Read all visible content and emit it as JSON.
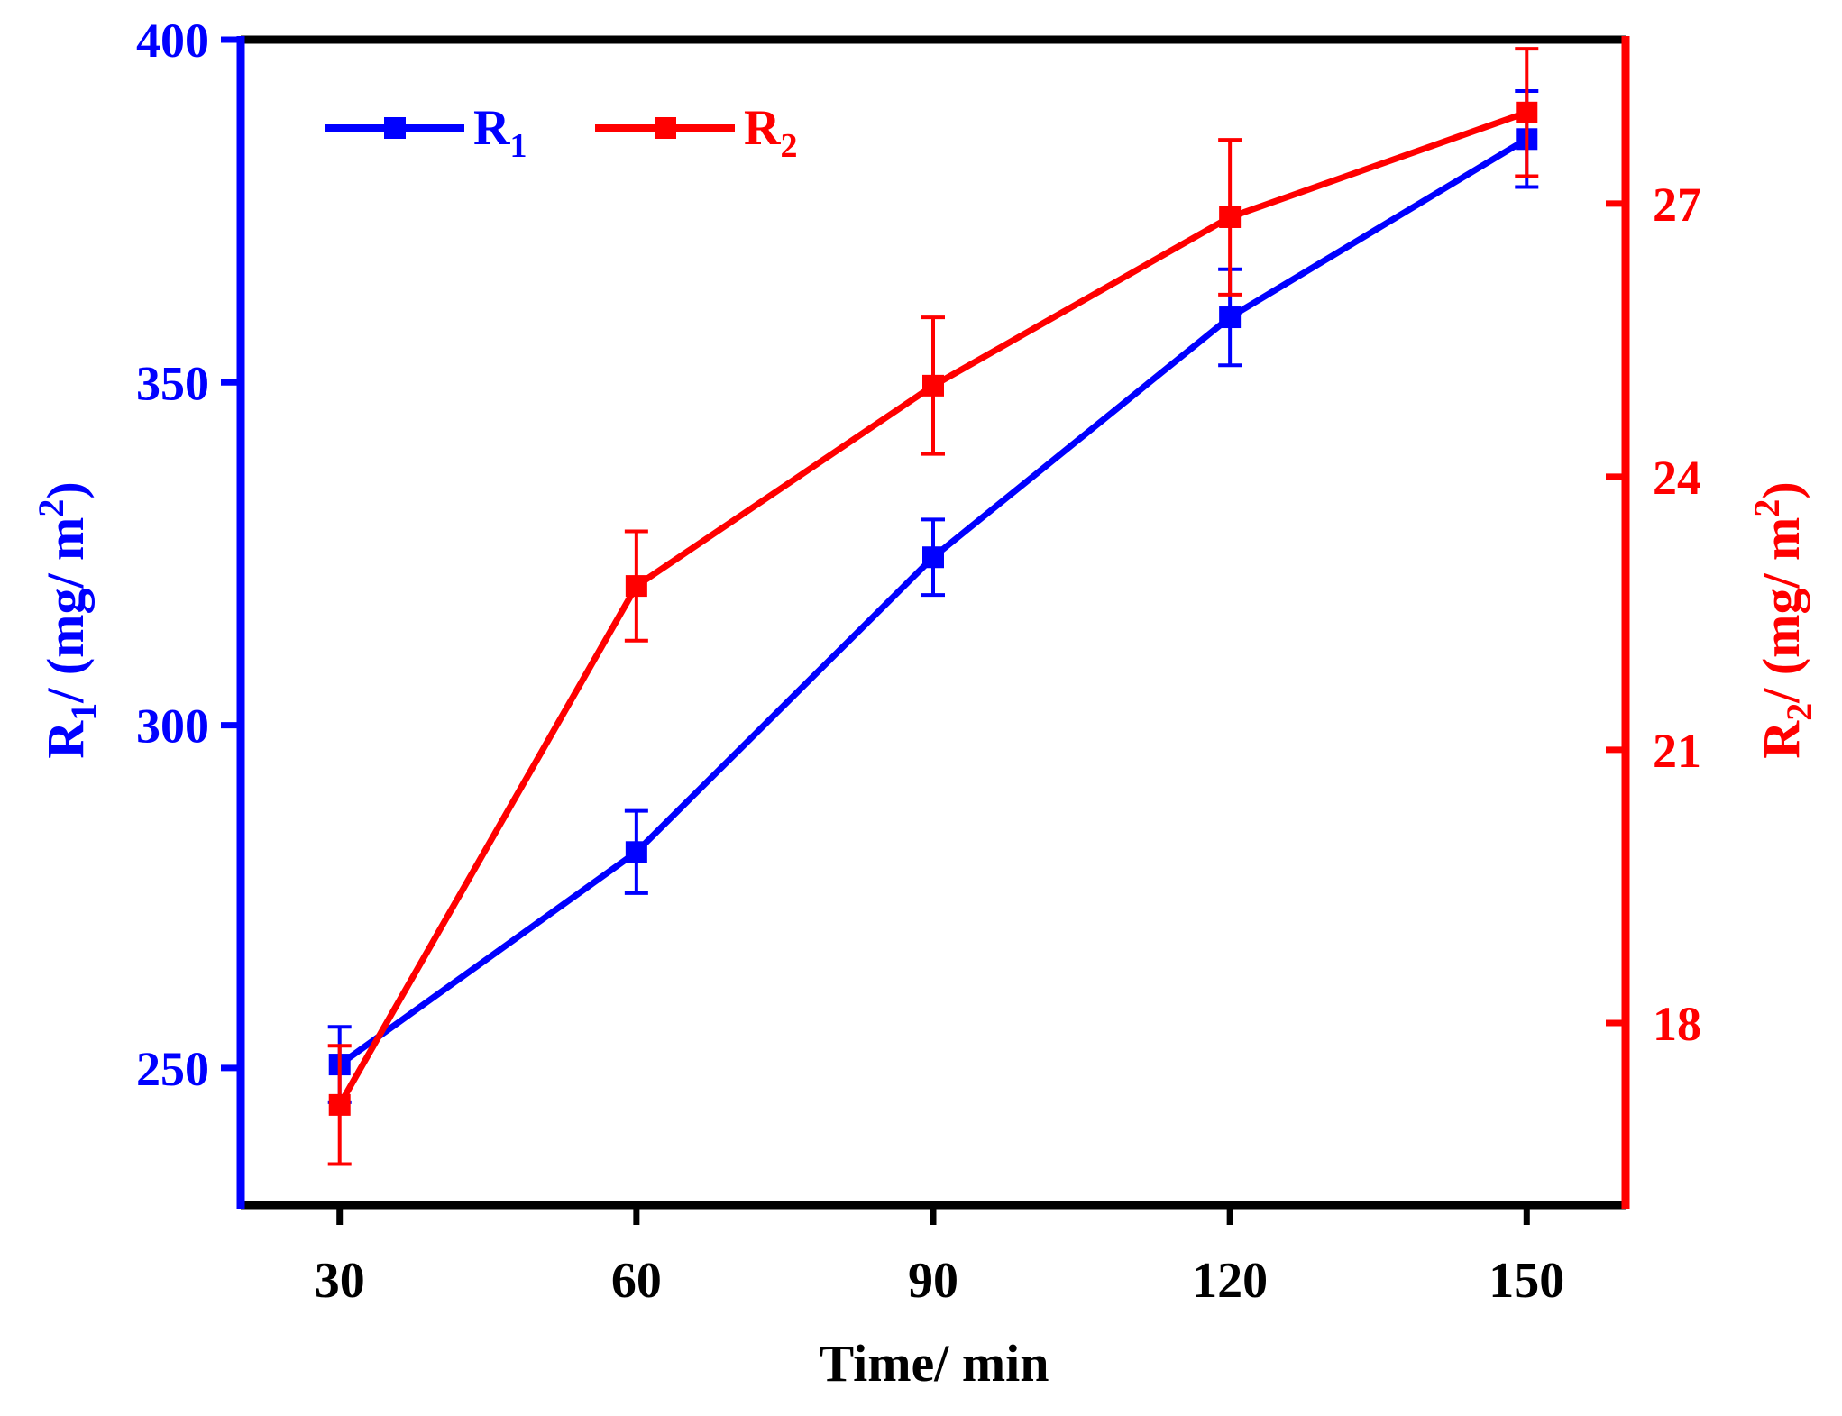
{
  "chart_data": {
    "type": "line",
    "title": "",
    "xlabel": "Time/ min",
    "x": [
      30,
      60,
      90,
      120,
      150
    ],
    "xlim": [
      20,
      160
    ],
    "xticks": [
      30,
      60,
      90,
      120,
      150
    ],
    "y_left": {
      "label_main": "R",
      "label_sub": "1",
      "label_unit": "/ (mg/ m",
      "label_sup": "2",
      "label_close": ")",
      "lim": [
        230,
        400
      ],
      "ticks": [
        250,
        300,
        350,
        400
      ],
      "color": "#0000ff"
    },
    "y_right": {
      "label_main": "R",
      "label_sub": "2",
      "label_unit": "/ (mg/ m",
      "label_sup": "2",
      "label_close": ")",
      "lim": [
        16,
        28.8
      ],
      "ticks": [
        18,
        21,
        24,
        27
      ],
      "color": "#ff0000"
    },
    "series": [
      {
        "name_main": "R",
        "name_sub": "1",
        "axis": "left",
        "color": "#0000ff",
        "values": [
          250.5,
          281.5,
          324.5,
          359.5,
          385.5
        ],
        "errors": [
          5.5,
          6,
          5.5,
          7,
          7
        ]
      },
      {
        "name_main": "R",
        "name_sub": "2",
        "axis": "right",
        "color": "#ff0000",
        "values": [
          17.1,
          22.8,
          25.0,
          26.85,
          28.0
        ],
        "errors": [
          0.65,
          0.6,
          0.75,
          0.85,
          0.7
        ]
      }
    ],
    "legend": "top-left"
  }
}
